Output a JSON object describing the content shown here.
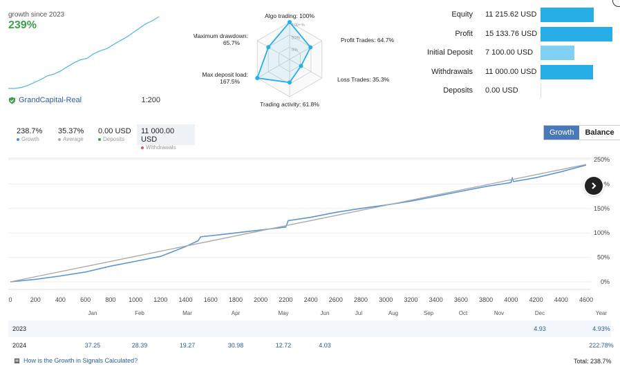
{
  "growth_card": {
    "label": "growth since 2023",
    "value": "239%",
    "broker": "GrandCapital-Real",
    "leverage": "1:200",
    "mini_chart_growth": [
      0,
      0,
      3,
      10,
      20,
      30,
      42,
      48,
      58,
      72,
      85,
      95,
      100,
      115,
      125,
      132,
      145,
      158,
      170,
      185,
      200,
      215,
      225,
      239
    ]
  },
  "radar": {
    "axes": [
      {
        "label": "Algo trading: 100%",
        "value": 100
      },
      {
        "label": "Profit Trades: 64.7%",
        "value": 64.7
      },
      {
        "label": "Loss Trades: 35.3%",
        "value": 35.3
      },
      {
        "label": "Trading activity: 61.8%",
        "value": 61.8
      },
      {
        "label": "Max deposit load:",
        "label2": "167.5%",
        "value": 100
      },
      {
        "label": "Maximum drawdown:",
        "label2": "65.7%",
        "value": 65.7
      }
    ],
    "ring_labels": [
      "100+%",
      "50%",
      "0%"
    ],
    "color": "#27aee7"
  },
  "stats": [
    {
      "label": "Equity",
      "value": "11 215.62 USD",
      "fraction": 0.74,
      "color": "#27aee7"
    },
    {
      "label": "Profit",
      "value": "15 133.76 USD",
      "fraction": 1.0,
      "color": "#27aee7"
    },
    {
      "label": "Initial Deposit",
      "value": "7 100.00 USD",
      "fraction": 0.47,
      "color": "#7fd0f2"
    },
    {
      "label": "Withdrawals",
      "value": "11 000.00 USD",
      "fraction": 0.73,
      "color": "#27aee7"
    },
    {
      "label": "Deposits",
      "value": "0.00 USD",
      "fraction": 0.0,
      "color": "#27aee7"
    }
  ],
  "summary": [
    {
      "value": "238.7%",
      "label": "Growth",
      "color": "#4a90d9"
    },
    {
      "value": "35.37%",
      "label": "Average",
      "color": "#aaaaaa"
    },
    {
      "value": "0.00 USD",
      "label": "Deposits",
      "color": "#3aa14a"
    },
    {
      "value": "11 000.00 USD",
      "label": "Withdrawals",
      "color": "#e05050"
    }
  ],
  "toggle": {
    "growth": "Growth",
    "balance": "Balance"
  },
  "chart_data": {
    "type": "line",
    "x_ticks": [
      "0",
      "200",
      "400",
      "600",
      "800",
      "1000",
      "1200",
      "1400",
      "1600",
      "1800",
      "2000",
      "2200",
      "2400",
      "2600",
      "2800",
      "3000",
      "3200",
      "3400",
      "3600",
      "3800",
      "4000",
      "4200",
      "4400",
      "4600"
    ],
    "y_ticks": [
      "250%",
      "200%",
      "150%",
      "100%",
      "50%",
      "0%"
    ],
    "xlim": [
      0,
      4600
    ],
    "ylim": [
      0,
      250
    ],
    "series": [
      {
        "color": "#5b95d6",
        "points": [
          [
            0,
            0
          ],
          [
            200,
            5
          ],
          [
            400,
            12
          ],
          [
            600,
            20
          ],
          [
            800,
            32
          ],
          [
            1000,
            42
          ],
          [
            1200,
            52
          ],
          [
            1300,
            62
          ],
          [
            1400,
            72
          ],
          [
            1500,
            84
          ],
          [
            1520,
            92
          ],
          [
            1700,
            97
          ],
          [
            1900,
            103
          ],
          [
            2200,
            112
          ],
          [
            2220,
            125
          ],
          [
            2400,
            132
          ],
          [
            2600,
            142
          ],
          [
            2800,
            150
          ],
          [
            3000,
            157
          ],
          [
            3200,
            165
          ],
          [
            3400,
            175
          ],
          [
            3600,
            185
          ],
          [
            3800,
            195
          ],
          [
            4000,
            203
          ],
          [
            4010,
            212
          ],
          [
            4020,
            205
          ],
          [
            4200,
            213
          ],
          [
            4400,
            225
          ],
          [
            4600,
            238.7
          ]
        ]
      },
      {
        "color": "#aaaaaa",
        "points": [
          [
            0,
            0
          ],
          [
            4600,
            240
          ]
        ]
      }
    ]
  },
  "months": [
    "Jan",
    "Feb",
    "Mar",
    "Apr",
    "May",
    "Jun",
    "Jul",
    "Aug",
    "Sep",
    "Oct",
    "Nov",
    "Dec",
    "Year"
  ],
  "years": [
    {
      "year": "2023",
      "values": [
        "",
        "",
        "",
        "",
        "",
        "",
        "",
        "",
        "",
        "",
        "",
        "4.93",
        "4.93%"
      ]
    },
    {
      "year": "2024",
      "values": [
        "37.25",
        "28.39",
        "19.27",
        "30.98",
        "12.72",
        "4.03",
        "",
        "",
        "",
        "",
        "",
        "",
        "222.78%"
      ]
    }
  ],
  "footer": {
    "link": "How is the Growth in Signals Calculated?",
    "total": "Total: 238.7%"
  }
}
